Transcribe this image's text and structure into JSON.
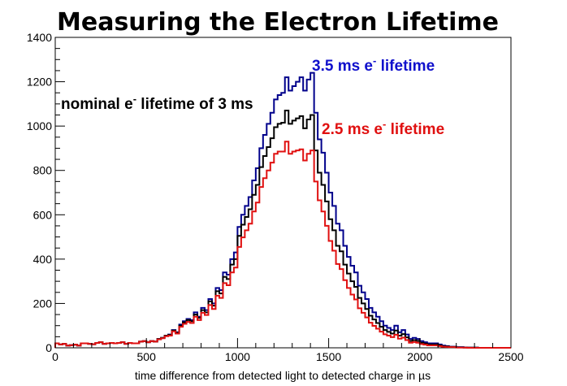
{
  "chart_data": {
    "type": "histogram",
    "title": "Measuring the Electron Lifetime",
    "xlabel": "time difference from detected light to detected charge in µs",
    "ylabel": "",
    "xlim": [
      0,
      2500
    ],
    "ylim": [
      0,
      1400
    ],
    "x_ticks": [
      "0",
      "500",
      "1000",
      "1500",
      "2000",
      "2500"
    ],
    "y_ticks": [
      "0",
      "200",
      "400",
      "600",
      "800",
      "1000",
      "1200",
      "1400"
    ],
    "bin_width": 20,
    "grid": false,
    "annotations": [
      {
        "id": "blue",
        "base": "3.5 ms e",
        "sup": "-",
        "rest": " lifetime",
        "color": "#1010cc"
      },
      {
        "id": "black",
        "base": "nominal e",
        "sup": "-",
        "rest": " lifetime of 3 ms",
        "color": "#000000"
      },
      {
        "id": "red",
        "base": "2.5 ms e",
        "sup": "-",
        "rest": " lifetime",
        "color": "#e01010"
      }
    ],
    "series": [
      {
        "color": "#00008b",
        "x": [
          0,
          20,
          40,
          60,
          80,
          100,
          120,
          140,
          160,
          180,
          200,
          220,
          240,
          260,
          280,
          300,
          320,
          340,
          360,
          380,
          400,
          420,
          440,
          460,
          480,
          500,
          520,
          540,
          560,
          580,
          600,
          620,
          640,
          660,
          680,
          700,
          720,
          740,
          760,
          780,
          800,
          820,
          840,
          860,
          880,
          900,
          920,
          940,
          960,
          980,
          1000,
          1020,
          1040,
          1060,
          1080,
          1100,
          1120,
          1140,
          1160,
          1180,
          1200,
          1220,
          1240,
          1260,
          1280,
          1300,
          1320,
          1340,
          1360,
          1380,
          1400,
          1420,
          1440,
          1460,
          1480,
          1500,
          1520,
          1540,
          1560,
          1580,
          1600,
          1620,
          1640,
          1660,
          1680,
          1700,
          1720,
          1740,
          1760,
          1780,
          1800,
          1820,
          1840,
          1860,
          1880,
          1900,
          1920,
          1940,
          1960,
          1980,
          2000,
          2020,
          2040,
          2060,
          2080,
          2100,
          2120,
          2140,
          2160,
          2180,
          2200,
          2220,
          2240,
          2260,
          2280,
          2300,
          2320,
          2340,
          2360,
          2380,
          2400,
          2420,
          2440,
          2460,
          2480
        ],
        "values": [
          20,
          15,
          18,
          10,
          12,
          14,
          10,
          20,
          20,
          18,
          16,
          22,
          25,
          18,
          20,
          22,
          20,
          22,
          25,
          18,
          22,
          20,
          20,
          28,
          30,
          25,
          30,
          28,
          40,
          45,
          55,
          60,
          80,
          70,
          105,
          120,
          130,
          125,
          160,
          140,
          180,
          170,
          220,
          200,
          270,
          260,
          340,
          330,
          400,
          430,
          545,
          600,
          640,
          680,
          755,
          810,
          900,
          960,
          1010,
          1060,
          1120,
          1140,
          1150,
          1220,
          1160,
          1180,
          1200,
          1220,
          1160,
          1210,
          1240,
          1060,
          940,
          880,
          790,
          700,
          640,
          560,
          530,
          460,
          410,
          370,
          340,
          280,
          250,
          220,
          180,
          160,
          140,
          120,
          100,
          90,
          80,
          100,
          70,
          80,
          60,
          40,
          45,
          40,
          30,
          25,
          20,
          20,
          20,
          15,
          10,
          8,
          5,
          5,
          3,
          3,
          2,
          1,
          1,
          1,
          0,
          0,
          0,
          0,
          0,
          0,
          0,
          0,
          0
        ]
      },
      {
        "color": "#000000",
        "x": [
          0,
          20,
          40,
          60,
          80,
          100,
          120,
          140,
          160,
          180,
          200,
          220,
          240,
          260,
          280,
          300,
          320,
          340,
          360,
          380,
          400,
          420,
          440,
          460,
          480,
          500,
          520,
          540,
          560,
          580,
          600,
          620,
          640,
          660,
          680,
          700,
          720,
          740,
          760,
          780,
          800,
          820,
          840,
          860,
          880,
          900,
          920,
          940,
          960,
          980,
          1000,
          1020,
          1040,
          1060,
          1080,
          1100,
          1120,
          1140,
          1160,
          1180,
          1200,
          1220,
          1240,
          1260,
          1280,
          1300,
          1320,
          1340,
          1360,
          1380,
          1400,
          1420,
          1440,
          1460,
          1480,
          1500,
          1520,
          1540,
          1560,
          1580,
          1600,
          1620,
          1640,
          1660,
          1680,
          1700,
          1720,
          1740,
          1760,
          1780,
          1800,
          1820,
          1840,
          1860,
          1880,
          1900,
          1920,
          1940,
          1960,
          1980,
          2000,
          2020,
          2040,
          2060,
          2080,
          2100,
          2120,
          2140,
          2160,
          2180,
          2200,
          2220,
          2240,
          2260,
          2280,
          2300,
          2320,
          2340,
          2360,
          2380,
          2400,
          2420,
          2440,
          2460,
          2480
        ],
        "values": [
          20,
          15,
          18,
          10,
          12,
          14,
          10,
          20,
          20,
          18,
          16,
          22,
          25,
          18,
          20,
          22,
          20,
          22,
          25,
          18,
          22,
          20,
          20,
          28,
          30,
          25,
          30,
          28,
          40,
          45,
          55,
          58,
          78,
          68,
          100,
          115,
          125,
          120,
          150,
          135,
          170,
          160,
          210,
          190,
          255,
          245,
          320,
          310,
          375,
          400,
          505,
          555,
          590,
          625,
          690,
          735,
          815,
          865,
          905,
          945,
          995,
          1010,
          1015,
          1070,
          1010,
          1025,
          1035,
          1045,
          990,
          1030,
          1050,
          890,
          790,
          735,
          660,
          580,
          530,
          460,
          435,
          375,
          335,
          300,
          275,
          225,
          200,
          175,
          145,
          128,
          112,
          95,
          80,
          72,
          64,
          78,
          55,
          62,
          47,
          31,
          35,
          31,
          23,
          19,
          15,
          15,
          15,
          11,
          7,
          6,
          4,
          4,
          2,
          2,
          1,
          1,
          1,
          1,
          0,
          0,
          0,
          0,
          0,
          0,
          0,
          0,
          0
        ]
      },
      {
        "color": "#e01010",
        "x": [
          0,
          20,
          40,
          60,
          80,
          100,
          120,
          140,
          160,
          180,
          200,
          220,
          240,
          260,
          280,
          300,
          320,
          340,
          360,
          380,
          400,
          420,
          440,
          460,
          480,
          500,
          520,
          540,
          560,
          580,
          600,
          620,
          640,
          660,
          680,
          700,
          720,
          740,
          760,
          780,
          800,
          820,
          840,
          860,
          880,
          900,
          920,
          940,
          960,
          980,
          1000,
          1020,
          1040,
          1060,
          1080,
          1100,
          1120,
          1140,
          1160,
          1180,
          1200,
          1220,
          1240,
          1260,
          1280,
          1300,
          1320,
          1340,
          1360,
          1380,
          1400,
          1420,
          1440,
          1460,
          1480,
          1500,
          1520,
          1540,
          1560,
          1580,
          1600,
          1620,
          1640,
          1660,
          1680,
          1700,
          1720,
          1740,
          1760,
          1780,
          1800,
          1820,
          1840,
          1860,
          1880,
          1900,
          1920,
          1940,
          1960,
          1980,
          2000,
          2020,
          2040,
          2060,
          2080,
          2100,
          2120,
          2140,
          2160,
          2180,
          2200,
          2220,
          2240,
          2260,
          2280,
          2300,
          2320,
          2340,
          2360,
          2380,
          2400,
          2420,
          2440,
          2460,
          2480
        ],
        "values": [
          20,
          15,
          18,
          10,
          12,
          14,
          10,
          20,
          20,
          18,
          16,
          22,
          25,
          18,
          20,
          22,
          20,
          22,
          25,
          18,
          22,
          20,
          20,
          28,
          30,
          25,
          30,
          28,
          38,
          43,
          52,
          55,
          74,
          64,
          95,
          108,
          117,
          112,
          140,
          125,
          158,
          148,
          193,
          175,
          235,
          225,
          292,
          282,
          340,
          362,
          455,
          498,
          530,
          560,
          615,
          655,
          725,
          765,
          800,
          835,
          875,
          885,
          885,
          930,
          875,
          885,
          890,
          895,
          845,
          875,
          890,
          750,
          665,
          615,
          550,
          482,
          438,
          378,
          355,
          305,
          270,
          240,
          218,
          178,
          158,
          137,
          113,
          99,
          86,
          73,
          61,
          55,
          48,
          59,
          41,
          46,
          35,
          23,
          26,
          23,
          17,
          14,
          11,
          11,
          11,
          8,
          5,
          4,
          3,
          3,
          1,
          1,
          1,
          0,
          0,
          0,
          0,
          0,
          0,
          0,
          0,
          0,
          0,
          0,
          0
        ]
      }
    ]
  }
}
